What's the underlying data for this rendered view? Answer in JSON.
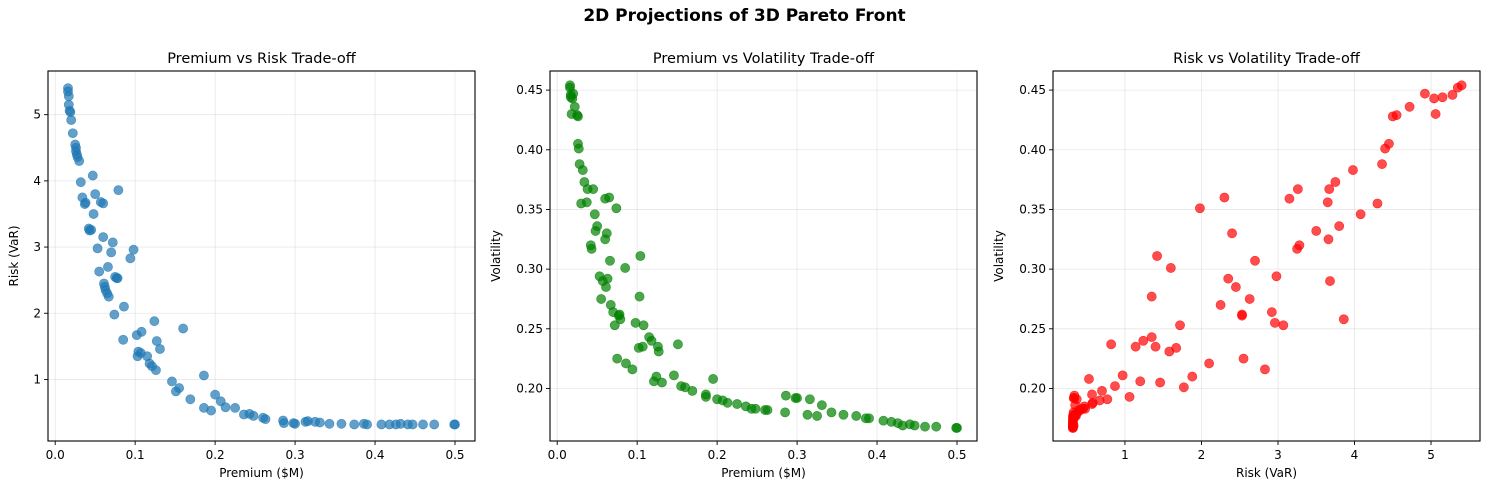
{
  "figure": {
    "suptitle": "2D Projections of 3D Pareto Front"
  },
  "chart_data": [
    {
      "type": "scatter",
      "title": "Premium vs Risk Trade-off",
      "xlabel": "Premium ($M)",
      "ylabel": "Risk (VaR)",
      "color": "#1f77b4",
      "alpha": 0.7,
      "grid": true,
      "xlim": [
        -0.009,
        0.525
      ],
      "ylim": [
        0.07,
        5.66
      ],
      "xticks": [
        0.0,
        0.1,
        0.2,
        0.3,
        0.4,
        0.5
      ],
      "xtick_labels": [
        "0.0",
        "0.1",
        "0.2",
        "0.3",
        "0.4",
        "0.5"
      ],
      "yticks": [
        1,
        2,
        3,
        4,
        5
      ],
      "ytick_labels": [
        "1",
        "2",
        "3",
        "4",
        "5"
      ],
      "x": [
        0.016,
        0.016,
        0.017,
        0.017,
        0.018,
        0.019,
        0.02,
        0.022,
        0.025,
        0.026,
        0.026,
        0.027,
        0.028,
        0.03,
        0.032,
        0.034,
        0.037,
        0.038,
        0.042,
        0.043,
        0.045,
        0.047,
        0.048,
        0.05,
        0.053,
        0.055,
        0.057,
        0.06,
        0.06,
        0.061,
        0.062,
        0.063,
        0.065,
        0.066,
        0.067,
        0.07,
        0.072,
        0.074,
        0.075,
        0.077,
        0.078,
        0.079,
        0.085,
        0.086,
        0.094,
        0.098,
        0.102,
        0.103,
        0.104,
        0.107,
        0.108,
        0.115,
        0.118,
        0.121,
        0.124,
        0.126,
        0.127,
        0.131,
        0.146,
        0.151,
        0.155,
        0.16,
        0.169,
        0.186,
        0.186,
        0.195,
        0.2,
        0.207,
        0.213,
        0.225,
        0.236,
        0.243,
        0.248,
        0.26,
        0.263,
        0.285,
        0.286,
        0.298,
        0.3,
        0.313,
        0.316,
        0.325,
        0.331,
        0.343,
        0.358,
        0.374,
        0.386,
        0.39,
        0.408,
        0.418,
        0.426,
        0.432,
        0.441,
        0.447,
        0.46,
        0.474,
        0.499,
        0.5
      ],
      "y": [
        5.4,
        5.35,
        5.28,
        5.15,
        5.06,
        5.04,
        4.92,
        4.72,
        4.55,
        4.5,
        4.45,
        4.4,
        4.36,
        4.3,
        3.98,
        3.75,
        3.65,
        3.67,
        3.28,
        3.25,
        3.26,
        4.08,
        3.5,
        3.8,
        2.98,
        2.63,
        3.68,
        3.66,
        3.15,
        2.45,
        2.4,
        2.35,
        2.3,
        2.7,
        2.25,
        2.92,
        3.07,
        1.98,
        2.55,
        2.53,
        2.53,
        3.86,
        1.6,
        2.1,
        2.83,
        2.96,
        1.67,
        1.35,
        1.42,
        1.4,
        1.72,
        1.35,
        1.24,
        1.2,
        1.88,
        1.14,
        1.58,
        1.46,
        0.97,
        0.82,
        0.87,
        1.77,
        0.7,
        0.57,
        1.06,
        0.53,
        0.77,
        0.67,
        0.58,
        0.57,
        0.47,
        0.48,
        0.45,
        0.42,
        0.4,
        0.38,
        0.34,
        0.34,
        0.33,
        0.36,
        0.37,
        0.36,
        0.35,
        0.33,
        0.33,
        0.32,
        0.33,
        0.32,
        0.32,
        0.32,
        0.32,
        0.33,
        0.32,
        0.32,
        0.32,
        0.32,
        0.32,
        0.32
      ]
    },
    {
      "type": "scatter",
      "title": "Premium vs Volatility Trade-off",
      "xlabel": "Premium ($M)",
      "ylabel": "Volatility",
      "color": "#008000",
      "alpha": 0.7,
      "grid": true,
      "xlim": [
        -0.009,
        0.525
      ],
      "ylim": [
        0.156,
        0.466
      ],
      "xticks": [
        0.0,
        0.1,
        0.2,
        0.3,
        0.4,
        0.5
      ],
      "xtick_labels": [
        "0.0",
        "0.1",
        "0.2",
        "0.3",
        "0.4",
        "0.5"
      ],
      "yticks": [
        0.2,
        0.25,
        0.3,
        0.35,
        0.4,
        0.45
      ],
      "ytick_labels": [
        "0.20",
        "0.25",
        "0.30",
        "0.35",
        "0.40",
        "0.45"
      ],
      "x": [
        0.016,
        0.016,
        0.017,
        0.017,
        0.018,
        0.019,
        0.02,
        0.022,
        0.025,
        0.026,
        0.026,
        0.027,
        0.028,
        0.03,
        0.032,
        0.034,
        0.037,
        0.038,
        0.042,
        0.043,
        0.045,
        0.047,
        0.048,
        0.05,
        0.053,
        0.055,
        0.057,
        0.06,
        0.06,
        0.061,
        0.062,
        0.063,
        0.065,
        0.066,
        0.067,
        0.07,
        0.072,
        0.074,
        0.075,
        0.077,
        0.078,
        0.079,
        0.085,
        0.086,
        0.094,
        0.098,
        0.102,
        0.103,
        0.104,
        0.107,
        0.108,
        0.115,
        0.118,
        0.121,
        0.124,
        0.126,
        0.127,
        0.131,
        0.146,
        0.151,
        0.155,
        0.16,
        0.169,
        0.186,
        0.186,
        0.195,
        0.2,
        0.207,
        0.213,
        0.225,
        0.236,
        0.243,
        0.248,
        0.26,
        0.263,
        0.285,
        0.286,
        0.298,
        0.3,
        0.313,
        0.316,
        0.325,
        0.331,
        0.343,
        0.358,
        0.374,
        0.386,
        0.39,
        0.408,
        0.418,
        0.426,
        0.432,
        0.441,
        0.447,
        0.46,
        0.474,
        0.499,
        0.5
      ],
      "y": [
        0.454,
        0.452,
        0.446,
        0.444,
        0.43,
        0.443,
        0.447,
        0.436,
        0.429,
        0.428,
        0.405,
        0.401,
        0.388,
        0.355,
        0.383,
        0.373,
        0.356,
        0.367,
        0.32,
        0.317,
        0.367,
        0.346,
        0.332,
        0.336,
        0.294,
        0.275,
        0.29,
        0.325,
        0.359,
        0.285,
        0.33,
        0.292,
        0.36,
        0.307,
        0.27,
        0.264,
        0.253,
        0.351,
        0.225,
        0.261,
        0.262,
        0.258,
        0.301,
        0.221,
        0.216,
        0.255,
        0.234,
        0.277,
        0.311,
        0.235,
        0.253,
        0.243,
        0.24,
        0.206,
        0.21,
        0.235,
        0.231,
        0.205,
        0.211,
        0.237,
        0.202,
        0.201,
        0.198,
        0.195,
        0.193,
        0.208,
        0.191,
        0.19,
        0.188,
        0.187,
        0.185,
        0.183,
        0.183,
        0.182,
        0.182,
        0.18,
        0.194,
        0.192,
        0.192,
        0.178,
        0.191,
        0.177,
        0.186,
        0.18,
        0.178,
        0.177,
        0.175,
        0.175,
        0.173,
        0.172,
        0.171,
        0.169,
        0.17,
        0.169,
        0.168,
        0.168,
        0.167,
        0.167
      ]
    },
    {
      "type": "scatter",
      "title": "Risk vs Volatility Trade-off",
      "xlabel": "Risk (VaR)",
      "ylabel": "Volatility",
      "color": "#ff0000",
      "alpha": 0.7,
      "grid": true,
      "xlim": [
        0.06,
        5.64
      ],
      "ylim": [
        0.156,
        0.466
      ],
      "xticks": [
        1,
        2,
        3,
        4,
        5
      ],
      "xtick_labels": [
        "1",
        "2",
        "3",
        "4",
        "5"
      ],
      "yticks": [
        0.2,
        0.25,
        0.3,
        0.35,
        0.4,
        0.45
      ],
      "ytick_labels": [
        "0.20",
        "0.25",
        "0.30",
        "0.35",
        "0.40",
        "0.45"
      ],
      "x": [
        5.4,
        5.35,
        5.28,
        5.15,
        5.06,
        5.04,
        4.92,
        4.72,
        4.55,
        4.5,
        4.45,
        4.4,
        4.36,
        4.3,
        3.98,
        3.75,
        3.65,
        3.67,
        3.28,
        3.25,
        3.26,
        4.08,
        3.5,
        3.8,
        2.98,
        2.63,
        3.68,
        3.66,
        3.15,
        2.45,
        2.4,
        2.35,
        2.3,
        2.7,
        2.25,
        2.92,
        3.07,
        1.98,
        2.55,
        2.53,
        2.53,
        3.86,
        1.6,
        2.1,
        2.83,
        2.96,
        1.67,
        1.35,
        1.42,
        1.4,
        1.72,
        1.35,
        1.24,
        1.2,
        1.88,
        1.14,
        1.58,
        1.46,
        0.97,
        0.82,
        0.87,
        1.77,
        0.7,
        0.57,
        1.06,
        0.53,
        0.77,
        0.67,
        0.58,
        0.57,
        0.47,
        0.48,
        0.45,
        0.42,
        0.4,
        0.38,
        0.34,
        0.34,
        0.33,
        0.36,
        0.37,
        0.36,
        0.35,
        0.33,
        0.33,
        0.32,
        0.33,
        0.32,
        0.32,
        0.32,
        0.32,
        0.33,
        0.32,
        0.32,
        0.32,
        0.32,
        0.32,
        0.32
      ],
      "y": [
        0.454,
        0.452,
        0.446,
        0.444,
        0.43,
        0.443,
        0.447,
        0.436,
        0.429,
        0.428,
        0.405,
        0.401,
        0.388,
        0.355,
        0.383,
        0.373,
        0.356,
        0.367,
        0.32,
        0.317,
        0.367,
        0.346,
        0.332,
        0.336,
        0.294,
        0.275,
        0.29,
        0.325,
        0.359,
        0.285,
        0.33,
        0.292,
        0.36,
        0.307,
        0.27,
        0.264,
        0.253,
        0.351,
        0.225,
        0.261,
        0.262,
        0.258,
        0.301,
        0.221,
        0.216,
        0.255,
        0.234,
        0.277,
        0.311,
        0.235,
        0.253,
        0.243,
        0.24,
        0.206,
        0.21,
        0.235,
        0.231,
        0.205,
        0.211,
        0.237,
        0.202,
        0.201,
        0.198,
        0.195,
        0.193,
        0.208,
        0.191,
        0.19,
        0.188,
        0.187,
        0.185,
        0.183,
        0.183,
        0.182,
        0.182,
        0.18,
        0.194,
        0.192,
        0.192,
        0.178,
        0.191,
        0.177,
        0.186,
        0.18,
        0.178,
        0.177,
        0.175,
        0.175,
        0.173,
        0.172,
        0.171,
        0.169,
        0.17,
        0.169,
        0.168,
        0.168,
        0.167,
        0.167
      ]
    }
  ]
}
